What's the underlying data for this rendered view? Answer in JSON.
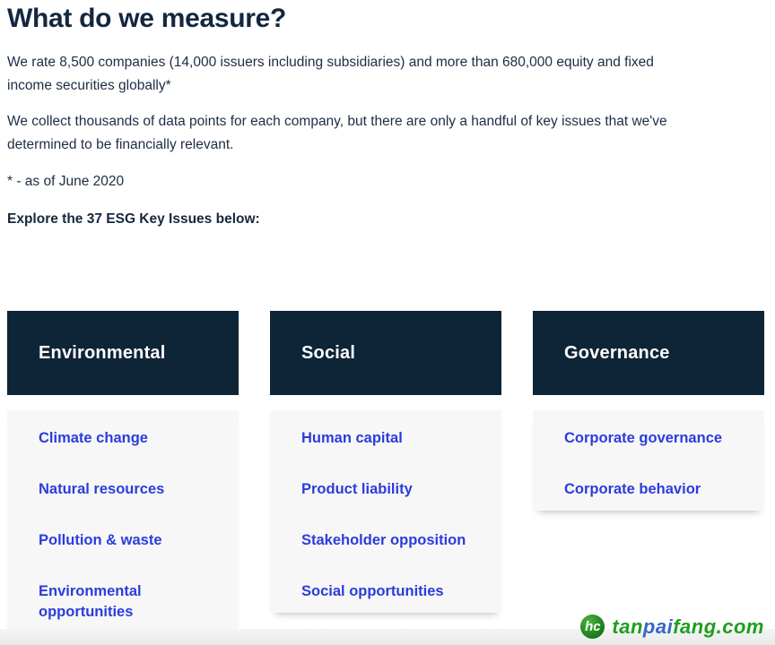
{
  "header": {
    "title": "What do we measure?"
  },
  "intro": {
    "paragraph_1": "We rate 8,500 companies (14,000 issuers including subsidiaries) and more than 680,000 equity and fixed income securities globally*",
    "paragraph_2": "We collect thousands of data points for each company, but there are only a handful of key issues that we've determined to be financially relevant.",
    "footnote": "* - as of June 2020",
    "explore_label": "Explore the 37 ESG Key Issues below:"
  },
  "esg_columns": [
    {
      "header": "Environmental",
      "links": [
        "Climate change",
        "Natural resources",
        "Pollution & waste",
        "Environmental opportunities"
      ]
    },
    {
      "header": "Social",
      "links": [
        "Human capital",
        "Product liability",
        "Stakeholder opposition",
        "Social opportunities"
      ]
    },
    {
      "header": "Governance",
      "links": [
        "Corporate governance",
        "Corporate behavior"
      ]
    }
  ],
  "watermark": {
    "logo_monogram": "hc",
    "part_green_1": "tan",
    "part_blue": "pai",
    "part_green_2": "fang.com"
  },
  "colors": {
    "navy_header": "#0e2437",
    "link_blue": "#2b3cdd",
    "panel_gray": "#f7f7f7",
    "body_text": "#1d2d44",
    "watermark_green": "#1f9e1f",
    "watermark_blue": "#3a66c8"
  }
}
